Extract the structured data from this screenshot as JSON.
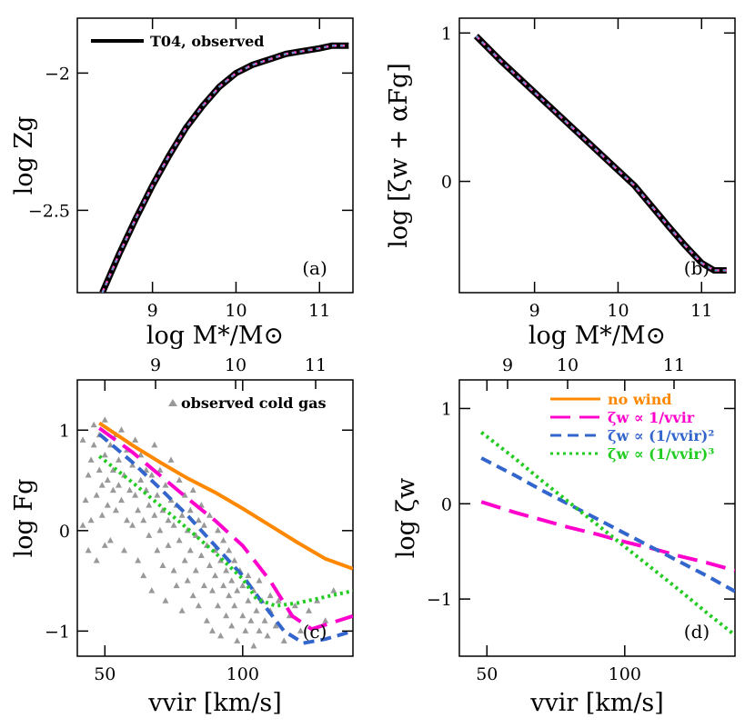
{
  "chart_data": [
    {
      "type": "line",
      "panel_label": "(a)",
      "xlabel": "log M*/M⊙",
      "ylabel": "log Zg",
      "xlim": [
        8.1,
        11.4
      ],
      "ylim": [
        -2.8,
        -1.8
      ],
      "xticks": [
        "9",
        "10",
        "11"
      ],
      "yticks": [
        "-2",
        "-2.5"
      ],
      "legend": {
        "placement": "top-left",
        "label": "T04, observed"
      },
      "series": [
        {
          "name": "T04, observed",
          "color": "#000000",
          "x": [
            8.4,
            8.6,
            8.8,
            9.0,
            9.2,
            9.4,
            9.6,
            9.8,
            10.0,
            10.2,
            10.4,
            10.6,
            10.8,
            11.0,
            11.15,
            11.35
          ],
          "y": [
            -2.8,
            -2.66,
            -2.53,
            -2.41,
            -2.3,
            -2.2,
            -2.12,
            -2.05,
            -2.0,
            -1.97,
            -1.95,
            -1.93,
            -1.92,
            -1.91,
            -1.9,
            -1.9
          ]
        }
      ]
    },
    {
      "type": "line",
      "panel_label": "(b)",
      "xlabel": "log M*/M⊙",
      "ylabel": "log [ζw + αFg]",
      "xlim": [
        8.1,
        11.4
      ],
      "ylim": [
        -0.75,
        1.1
      ],
      "xticks": [
        "9",
        "10",
        "11"
      ],
      "yticks": [
        "1",
        "0"
      ],
      "series": [
        {
          "color": "#000000",
          "x": [
            8.3,
            8.6,
            9.0,
            9.4,
            9.8,
            10.2,
            10.6,
            10.8,
            11.0,
            11.15,
            11.3
          ],
          "y": [
            0.98,
            0.81,
            0.6,
            0.39,
            0.18,
            -0.03,
            -0.3,
            -0.43,
            -0.55,
            -0.6,
            -0.6
          ]
        }
      ]
    },
    {
      "type": "scatter",
      "panel_label": "(c)",
      "xlabel": "vvir [km/s]",
      "ylabel": "log Fg",
      "top_axis_ticks": [
        "9",
        "10",
        "11"
      ],
      "xlim": [
        40,
        140
      ],
      "ylim": [
        -1.25,
        1.5
      ],
      "xticks": [
        "50",
        "100"
      ],
      "yticks": [
        "1",
        "0",
        "-1"
      ],
      "legend": {
        "placement": "top-right",
        "label": "observed cold gas"
      },
      "scatter_color": "#999999",
      "series": [
        {
          "name": "no wind",
          "color": "#ff8800",
          "x": [
            48,
            60,
            70,
            80,
            90,
            100,
            110,
            120,
            130,
            140
          ],
          "y": [
            1.07,
            0.85,
            0.68,
            0.52,
            0.38,
            0.22,
            0.05,
            -0.12,
            -0.28,
            -0.38
          ]
        },
        {
          "name": "ζw ∝ 1/vvir",
          "color": "#ff00cc",
          "x": [
            48,
            60,
            70,
            80,
            90,
            100,
            110,
            118,
            125,
            132,
            140
          ],
          "y": [
            1.02,
            0.78,
            0.55,
            0.32,
            0.1,
            -0.15,
            -0.5,
            -0.85,
            -0.98,
            -0.92,
            -0.85
          ]
        },
        {
          "name": "ζw ∝ (1/vvir)²",
          "color": "#3366cc",
          "x": [
            48,
            60,
            70,
            80,
            90,
            100,
            108,
            115,
            122,
            130,
            140
          ],
          "y": [
            0.96,
            0.68,
            0.42,
            0.15,
            -0.15,
            -0.45,
            -0.75,
            -1.0,
            -1.12,
            -1.08,
            -1.0
          ]
        },
        {
          "name": "ζw ∝ (1/vvir)³",
          "color": "#22cc22",
          "x": [
            48,
            60,
            70,
            80,
            90,
            100,
            105,
            112,
            120,
            130,
            140
          ],
          "y": [
            0.74,
            0.48,
            0.25,
            0.02,
            -0.22,
            -0.48,
            -0.68,
            -0.75,
            -0.72,
            -0.66,
            -0.6
          ]
        }
      ],
      "scatter": [
        [
          42,
          0.9
        ],
        [
          43,
          0.3
        ],
        [
          44,
          0.55
        ],
        [
          45,
          0.7
        ],
        [
          45,
          0.1
        ],
        [
          46,
          0.85
        ],
        [
          46,
          1.05
        ],
        [
          47,
          0.35
        ],
        [
          48,
          0.6
        ],
        [
          48,
          0.95
        ],
        [
          49,
          0.45
        ],
        [
          49,
          0.15
        ],
        [
          50,
          0.75
        ],
        [
          50,
          1.1
        ],
        [
          51,
          0.5
        ],
        [
          51,
          0.25
        ],
        [
          52,
          0.85
        ],
        [
          52,
          -0.1
        ],
        [
          53,
          0.6
        ],
        [
          53,
          0.4
        ],
        [
          54,
          0.95
        ],
        [
          54,
          0.2
        ],
        [
          55,
          0.7
        ],
        [
          55,
          0.45
        ],
        [
          56,
          0.3
        ],
        [
          56,
          1.0
        ],
        [
          57,
          0.55
        ],
        [
          57,
          -0.2
        ],
        [
          58,
          0.8
        ],
        [
          58,
          0.1
        ],
        [
          59,
          0.4
        ],
        [
          60,
          0.65
        ],
        [
          60,
          0.05
        ],
        [
          61,
          0.35
        ],
        [
          61,
          0.9
        ],
        [
          62,
          0.2
        ],
        [
          62,
          -0.3
        ],
        [
          63,
          0.5
        ],
        [
          63,
          0.75
        ],
        [
          64,
          0.1
        ],
        [
          64,
          -0.45
        ],
        [
          65,
          0.4
        ],
        [
          65,
          0.6
        ],
        [
          66,
          -0.05
        ],
        [
          66,
          0.25
        ],
        [
          67,
          0.55
        ],
        [
          67,
          -0.6
        ],
        [
          68,
          0.15
        ],
        [
          68,
          0.85
        ],
        [
          69,
          -0.2
        ],
        [
          69,
          0.35
        ],
        [
          70,
          0.0
        ],
        [
          70,
          0.6
        ],
        [
          71,
          -0.35
        ],
        [
          71,
          0.2
        ],
        [
          72,
          0.45
        ],
        [
          72,
          -0.7
        ],
        [
          73,
          0.1
        ],
        [
          73,
          -0.15
        ],
        [
          74,
          0.3
        ],
        [
          74,
          0.7
        ],
        [
          75,
          -0.4
        ],
        [
          75,
          0.05
        ],
        [
          76,
          0.25
        ],
        [
          76,
          -0.55
        ],
        [
          77,
          0.5
        ],
        [
          77,
          -0.1
        ],
        [
          78,
          0.15
        ],
        [
          78,
          -0.8
        ],
        [
          79,
          -0.3
        ],
        [
          79,
          0.35
        ],
        [
          80,
          0.0
        ],
        [
          80,
          -0.5
        ],
        [
          81,
          0.2
        ],
        [
          81,
          -0.2
        ],
        [
          82,
          -0.65
        ],
        [
          82,
          0.4
        ],
        [
          83,
          -0.05
        ],
        [
          83,
          -0.4
        ],
        [
          84,
          0.1
        ],
        [
          84,
          -0.75
        ],
        [
          85,
          -0.25
        ],
        [
          85,
          0.25
        ],
        [
          86,
          -0.55
        ],
        [
          86,
          0.05
        ],
        [
          87,
          -0.9
        ],
        [
          87,
          -0.15
        ],
        [
          88,
          -0.35
        ],
        [
          88,
          0.15
        ],
        [
          89,
          -0.6
        ],
        [
          89,
          -1.0
        ],
        [
          90,
          -0.2
        ],
        [
          90,
          -0.45
        ],
        [
          91,
          0.0
        ],
        [
          91,
          -0.75
        ],
        [
          92,
          -0.3
        ],
        [
          92,
          -1.05
        ],
        [
          93,
          -0.55
        ],
        [
          93,
          -0.1
        ],
        [
          94,
          -0.85
        ],
        [
          94,
          -0.4
        ],
        [
          95,
          -0.65
        ],
        [
          95,
          -0.2
        ],
        [
          96,
          -0.95
        ],
        [
          96,
          -0.5
        ],
        [
          97,
          -0.3
        ],
        [
          97,
          -0.75
        ],
        [
          98,
          -1.1
        ],
        [
          98,
          -0.6
        ],
        [
          99,
          -0.4
        ],
        [
          100,
          -0.85
        ],
        [
          100,
          -0.55
        ],
        [
          101,
          -1.0
        ],
        [
          102,
          -0.7
        ],
        [
          102,
          -0.45
        ],
        [
          103,
          -0.9
        ],
        [
          104,
          -0.6
        ],
        [
          104,
          -1.15
        ],
        [
          105,
          -0.8
        ],
        [
          106,
          -0.5
        ],
        [
          106,
          -1.0
        ],
        [
          107,
          -0.7
        ],
        [
          108,
          -0.9
        ],
        [
          109,
          -1.05
        ],
        [
          110,
          -0.65
        ],
        [
          110,
          -0.8
        ],
        [
          112,
          -0.95
        ],
        [
          113,
          -0.7
        ],
        [
          115,
          -1.1
        ],
        [
          117,
          -0.85
        ],
        [
          119,
          -0.75
        ],
        [
          121,
          -1.0
        ],
        [
          124,
          -0.8
        ],
        [
          127,
          -0.7
        ],
        [
          130,
          -0.9
        ],
        [
          133,
          -0.6
        ],
        [
          42,
          0.05
        ],
        [
          44,
          -0.2
        ],
        [
          47,
          -0.3
        ],
        [
          50,
          -0.15
        ]
      ]
    },
    {
      "type": "line",
      "panel_label": "(d)",
      "xlabel": "vvir [km/s]",
      "ylabel": "log ζw",
      "top_axis_ticks": [
        "9",
        "10",
        "11"
      ],
      "xlim": [
        40,
        140
      ],
      "ylim": [
        -1.6,
        1.3
      ],
      "xticks": [
        "50",
        "100"
      ],
      "yticks": [
        "1",
        "0",
        "-1"
      ],
      "legend": {
        "placement": "top-right",
        "labels": [
          "no wind",
          "ζw ∝ 1/vvir",
          "ζw ∝ (1/vvir)²",
          "ζw ∝ (1/vvir)³"
        ]
      },
      "series": [
        {
          "name": "ζw ∝ 1/vvir",
          "color": "#ff00cc",
          "x": [
            48,
            60,
            70,
            80,
            90,
            100,
            110,
            120,
            130,
            140
          ],
          "y": [
            0.02,
            -0.09,
            -0.17,
            -0.25,
            -0.32,
            -0.4,
            -0.47,
            -0.55,
            -0.62,
            -0.7
          ]
        },
        {
          "name": "ζw ∝ (1/vvir)²",
          "color": "#3366cc",
          "x": [
            48,
            60,
            70,
            80,
            90,
            100,
            110,
            120,
            130,
            140
          ],
          "y": [
            0.48,
            0.3,
            0.14,
            -0.01,
            -0.16,
            -0.31,
            -0.46,
            -0.61,
            -0.76,
            -0.92
          ]
        },
        {
          "name": "ζw ∝ (1/vvir)³",
          "color": "#22cc22",
          "x": [
            48,
            60,
            70,
            80,
            90,
            100,
            110,
            120,
            130,
            140
          ],
          "y": [
            0.75,
            0.48,
            0.24,
            0.01,
            -0.22,
            -0.45,
            -0.68,
            -0.91,
            -1.15,
            -1.38
          ]
        }
      ]
    }
  ]
}
